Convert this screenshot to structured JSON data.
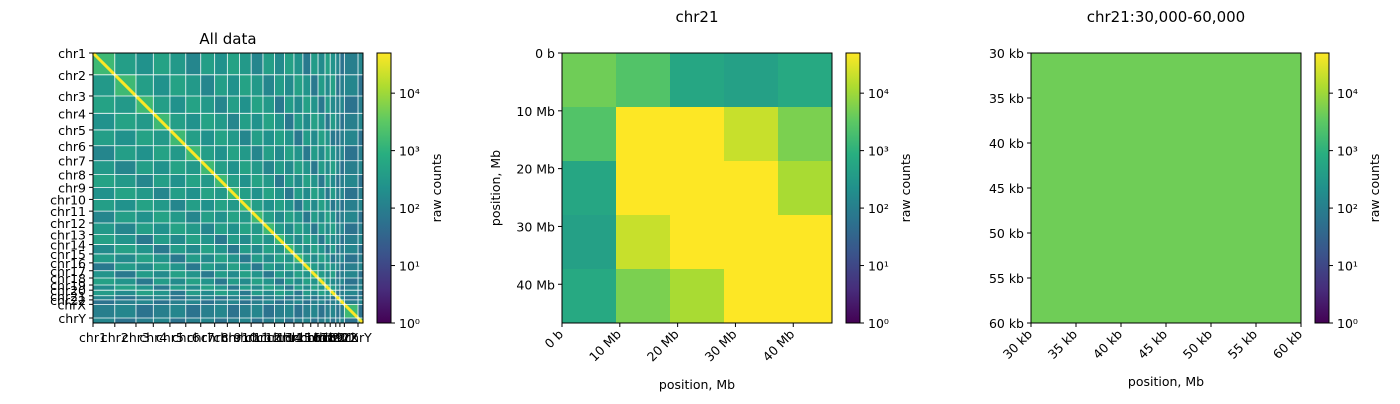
{
  "chart_data": [
    {
      "type": "heatmap",
      "title": "All data",
      "scale": "log",
      "colormap": "viridis",
      "ytick_labels": [
        "chr1",
        "chr2",
        "chr3",
        "chr4",
        "chr5",
        "chr6",
        "chr7",
        "chr8",
        "chr9",
        "chr10",
        "chr11",
        "chr12",
        "chr13",
        "chr14",
        "chr15",
        "chr16",
        "chr17",
        "chr18",
        "chr19",
        "chr20",
        "chr21",
        "chr22",
        "chrX",
        "chrY"
      ],
      "xtick_labels": [
        "chr1",
        "chr2",
        "chr3",
        "chr4",
        "chr5",
        "chr6",
        "chr7",
        "chr8",
        "chr9",
        "chr10",
        "chr11",
        "chr12",
        "chr13",
        "chr14",
        "chr15",
        "chr16",
        "chr17",
        "chr18",
        "chr19",
        "chr20",
        "chr21",
        "chr22",
        "chrX",
        "chrY"
      ],
      "chromosome_sizes_mb": [
        249,
        242,
        198,
        190,
        181,
        171,
        159,
        145,
        138,
        134,
        135,
        133,
        114,
        107,
        102,
        90,
        83,
        80,
        59,
        64,
        47,
        51,
        156,
        57
      ],
      "colorbar": {
        "label": "raw counts",
        "ticks": [
          "10⁰",
          "10¹",
          "10²",
          "10³",
          "10⁴"
        ],
        "range": [
          1,
          50000
        ]
      }
    },
    {
      "type": "heatmap",
      "title": "chr21",
      "xlabel": "position, Mb",
      "ylabel": "position, Mb",
      "scale": "log",
      "colormap": "viridis",
      "xtick_labels": [
        "0 b",
        "10 Mb",
        "20 Mb",
        "30 Mb",
        "40 Mb"
      ],
      "ytick_labels": [
        "0 b",
        "10 Mb",
        "20 Mb",
        "30 Mb",
        "40 Mb"
      ],
      "extent_mb": [
        0,
        46.7
      ],
      "bin_size_mb": 9.34,
      "values": [
        [
          4500,
          2500,
          600,
          450,
          700
        ],
        [
          2500,
          50000,
          50000,
          20000,
          5500
        ],
        [
          600,
          50000,
          50000,
          50000,
          12000
        ],
        [
          450,
          20000,
          50000,
          50000,
          50000
        ],
        [
          700,
          5500,
          12000,
          50000,
          50000
        ]
      ],
      "colorbar": {
        "label": "raw counts",
        "ticks": [
          "10⁰",
          "10¹",
          "10²",
          "10³",
          "10⁴"
        ],
        "range": [
          1,
          50000
        ]
      }
    },
    {
      "type": "heatmap",
      "title": "chr21:30,000-60,000",
      "xlabel": "position, Mb",
      "scale": "log",
      "colormap": "viridis",
      "xtick_labels": [
        "30 kb",
        "35 kb",
        "40 kb",
        "45 kb",
        "50 kb",
        "55 kb",
        "60 kb"
      ],
      "ytick_labels": [
        "30 kb",
        "35 kb",
        "40 kb",
        "45 kb",
        "50 kb",
        "55 kb",
        "60 kb"
      ],
      "extent_kb": [
        30,
        60
      ],
      "value": 4500,
      "colorbar": {
        "label": "raw counts",
        "ticks": [
          "10⁰",
          "10¹",
          "10²",
          "10³",
          "10⁴"
        ],
        "range": [
          1,
          50000
        ]
      }
    }
  ]
}
